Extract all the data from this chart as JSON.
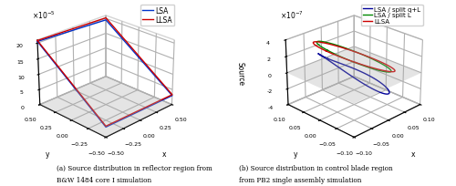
{
  "left_plot": {
    "lsa_x": [
      -0.5,
      0.5,
      0.5,
      -0.5,
      -0.5
    ],
    "lsa_y": [
      0.5,
      0.5,
      -0.5,
      -0.5,
      0.5
    ],
    "lsa_z": [
      20.5,
      19.5,
      3.0,
      3.2,
      20.5
    ],
    "llsa_x": [
      -0.5,
      0.5,
      0.5,
      -0.5,
      -0.5
    ],
    "llsa_y": [
      0.5,
      0.5,
      -0.5,
      -0.5,
      0.5
    ],
    "llsa_z": [
      20.8,
      20.2,
      3.3,
      3.5,
      20.8
    ],
    "scale": 1e-05,
    "xlabel": "x",
    "ylabel": "y",
    "zlabel": "Source",
    "xlim": [
      -0.5,
      0.5
    ],
    "ylim": [
      -0.5,
      0.5
    ],
    "zlim": [
      0,
      21
    ],
    "xticks": [
      -0.5,
      -0.25,
      0,
      0.25,
      0.5
    ],
    "yticks": [
      -0.5,
      -0.25,
      0,
      0.25,
      0.5
    ],
    "zticks": [
      0,
      5,
      10,
      15,
      20
    ],
    "legend": [
      "LSA",
      "LLSA"
    ],
    "colors": [
      "#0033cc",
      "#cc0000"
    ],
    "elev": 25,
    "azim": -135
  },
  "right_plot": {
    "scale": 1e-07,
    "xlabel": "x",
    "ylabel": "y",
    "zlabel": "Source",
    "xlim": [
      -0.1,
      0.1
    ],
    "ylim": [
      -0.1,
      0.1
    ],
    "zlim": [
      -4,
      4
    ],
    "xticks": [
      -0.1,
      -0.05,
      0,
      0.05,
      0.1
    ],
    "yticks": [
      -0.1,
      -0.05,
      0,
      0.05,
      0.1
    ],
    "zticks": [
      -4,
      -2,
      0,
      2,
      4
    ],
    "legend": [
      "LSA / split q+L",
      "LSA / split L",
      "LLSA"
    ],
    "colors": [
      "#000099",
      "#008800",
      "#cc0000"
    ],
    "elev": 25,
    "azim": -135
  },
  "caption_left": "(a) Source distribution in reflector region from B&W 1484 core I simulation",
  "caption_right": "(b) Source distribution in control blade region from PB2 single assembly simulation"
}
